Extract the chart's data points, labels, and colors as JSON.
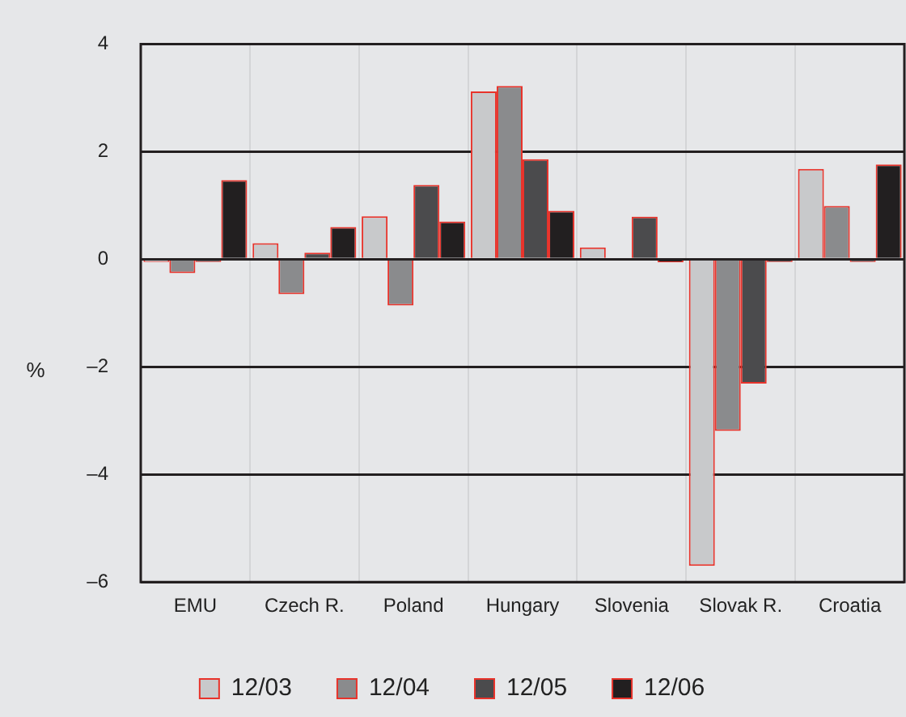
{
  "chart_data": {
    "type": "bar",
    "ylabel": "%",
    "categories": [
      "EMU",
      "Czech R.",
      "Poland",
      "Hungary",
      "Slovenia",
      "Slovak R.",
      "Croatia"
    ],
    "series": [
      {
        "name": "12/03",
        "color": "#c8c9cb",
        "values": [
          -0.05,
          0.3,
          0.8,
          3.12,
          0.22,
          -5.7,
          1.68
        ]
      },
      {
        "name": "12/04",
        "color": "#8a8b8d",
        "values": [
          -0.26,
          -0.65,
          -0.86,
          3.22,
          null,
          -3.19,
          0.99
        ]
      },
      {
        "name": "12/05",
        "color": "#4b4b4d",
        "values": [
          -0.05,
          0.12,
          1.38,
          1.86,
          0.79,
          -2.31,
          -0.05
        ]
      },
      {
        "name": "12/06",
        "color": "#221f20",
        "values": [
          1.47,
          0.6,
          0.7,
          0.9,
          -0.06,
          -0.05,
          1.76
        ]
      }
    ],
    "ylim": [
      -6,
      4
    ],
    "yticks": [
      {
        "value": -6,
        "label": "–6"
      },
      {
        "value": -4,
        "label": "–4"
      },
      {
        "value": -2,
        "label": "–2"
      },
      0,
      2,
      4
    ],
    "grid": true,
    "legend": "bottom"
  }
}
